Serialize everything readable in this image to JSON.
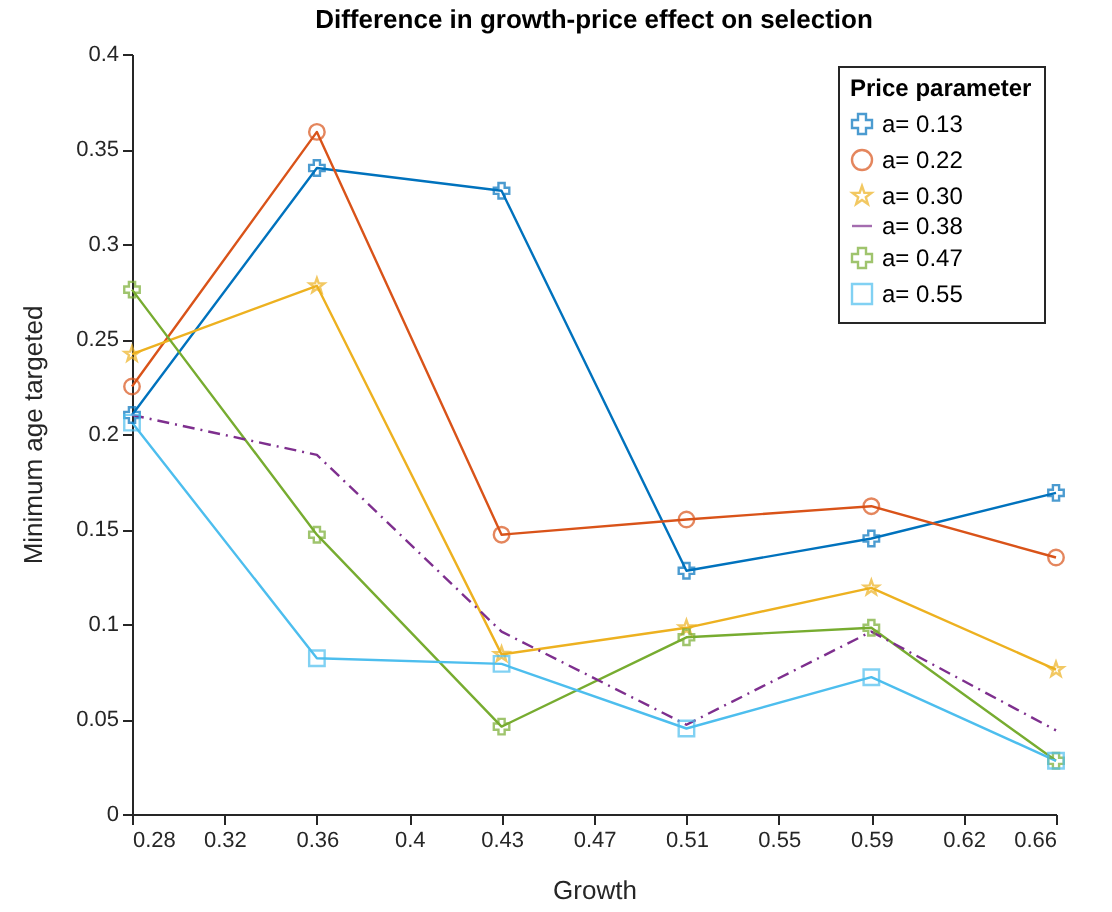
{
  "chart_data": {
    "type": "line",
    "title": "Difference in growth-price effect on selection",
    "xlabel": "Growth",
    "ylabel": "Minimum age targeted",
    "legend_title": "Price parameter",
    "legend": "top right",
    "grid": false,
    "x": [
      0.28,
      0.3567,
      0.4333,
      0.51,
      0.5867,
      0.6633
    ],
    "xlim": [
      0.28,
      0.6633
    ],
    "xticks": [
      0.28,
      {
        "value": 0.3183,
        "label": "0.32"
      },
      {
        "value": 0.3567,
        "label": "0.36"
      },
      {
        "value": 0.395,
        "label": "0.4"
      },
      {
        "value": 0.4333,
        "label": "0.43"
      },
      {
        "value": 0.4717,
        "label": "0.47"
      },
      0.51,
      {
        "value": 0.5483,
        "label": "0.55"
      },
      {
        "value": 0.5867,
        "label": "0.59"
      },
      {
        "value": 0.625,
        "label": "0.62"
      },
      {
        "value": 0.6633,
        "label": "0.66"
      }
    ],
    "ylim": [
      0,
      0.4
    ],
    "yticks": [
      0,
      0.05,
      0.1,
      0.15,
      0.2,
      0.25,
      0.3,
      0.35,
      0.4
    ],
    "series": [
      {
        "name": "a= 0.13",
        "color": "#0072bd",
        "marker": "cross",
        "line_style": "solid",
        "values": [
          0.21,
          0.34,
          0.328,
          0.128,
          0.145,
          0.169
        ]
      },
      {
        "name": "a= 0.22",
        "color": "#d95319",
        "marker": "circle",
        "line_style": "solid",
        "values": [
          0.225,
          0.359,
          0.147,
          0.155,
          0.162,
          0.135
        ]
      },
      {
        "name": "a= 0.30",
        "color": "#edb120",
        "marker": "star",
        "line_style": "solid",
        "values": [
          0.242,
          0.278,
          0.084,
          0.098,
          0.119,
          0.076
        ]
      },
      {
        "name": "a= 0.38",
        "color": "#7e2f8e",
        "marker": "none",
        "line_style": "dashed",
        "values": [
          0.21,
          0.189,
          0.096,
          0.047,
          0.096,
          0.044
        ]
      },
      {
        "name": "a= 0.47",
        "color": "#77ac30",
        "marker": "cross",
        "line_style": "solid",
        "values": [
          0.276,
          0.147,
          0.046,
          0.093,
          0.098,
          0.028
        ]
      },
      {
        "name": "a= 0.55",
        "color": "#4dbeee",
        "marker": "square",
        "line_style": "solid",
        "values": [
          0.206,
          0.082,
          0.079,
          0.045,
          0.072,
          0.028
        ]
      }
    ]
  }
}
